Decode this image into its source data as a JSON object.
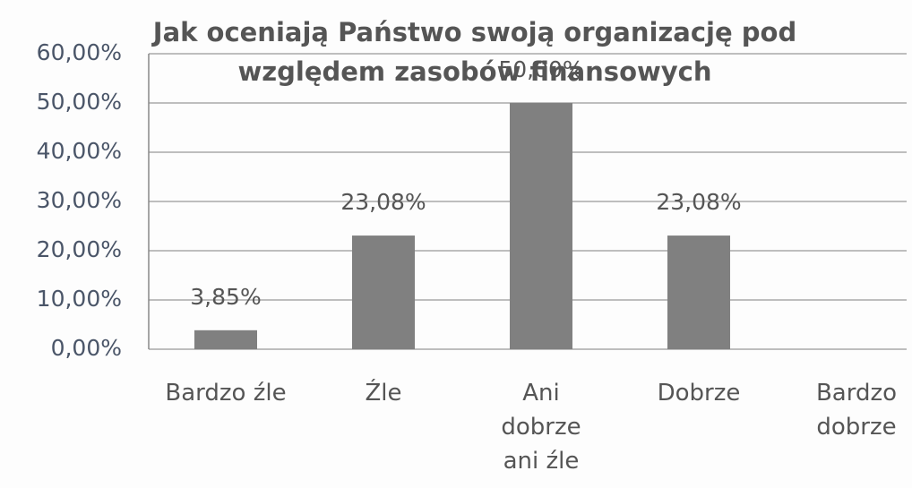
{
  "chart_data": {
    "type": "bar",
    "title": "Jak oceniają Państwo swoją organizację pod względem zasobów finansowych",
    "categories": [
      "Bardzo źle",
      "Źle",
      "Ani\ndobrze\nani źle",
      "Dobrze",
      "Bardzo\ndobrze"
    ],
    "values": [
      3.85,
      23.08,
      50,
      23.08,
      0
    ],
    "value_labels": [
      "3,85%",
      "23,08%",
      "50,00%",
      "23,08%",
      null
    ],
    "color": "#808080",
    "ylim": [
      0,
      60
    ],
    "yticks": [
      {
        "value": 0,
        "label": "0,00%"
      },
      {
        "value": 10,
        "label": "10,00%"
      },
      {
        "value": 20,
        "label": "20,00%"
      },
      {
        "value": 30,
        "label": "30,00%"
      },
      {
        "value": 40,
        "label": "40,00%"
      },
      {
        "value": 50,
        "label": "50,00%"
      },
      {
        "value": 60,
        "label": "60,00%"
      }
    ],
    "grid": true
  }
}
